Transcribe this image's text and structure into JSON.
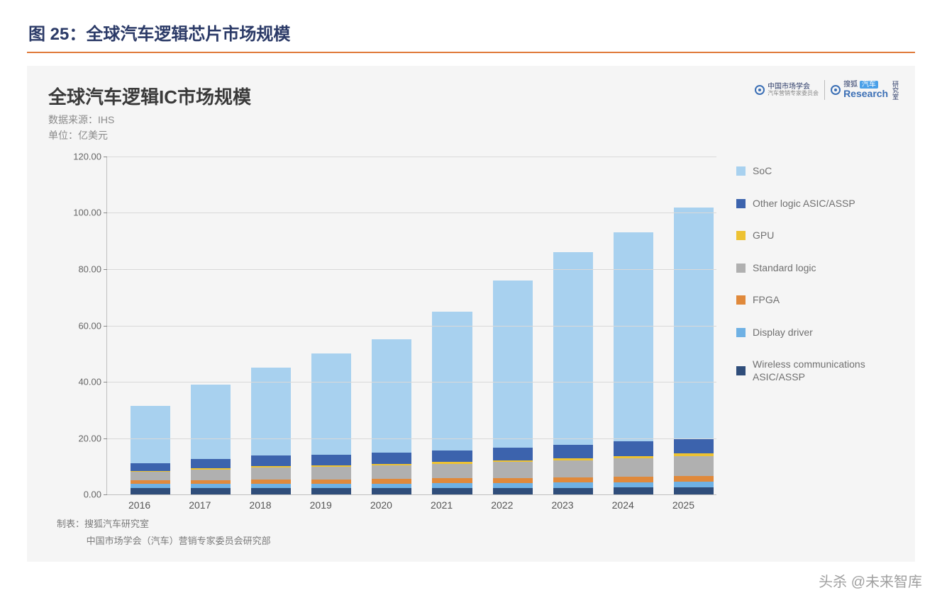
{
  "figure_caption": "图 25：全球汽车逻辑芯片市场规模",
  "hr_color": "#e07a3a",
  "panel": {
    "background": "#f5f5f5",
    "title": "全球汽车逻辑IC市场规模",
    "source_line": "数据来源：IHS",
    "unit_line": "单位：亿美元",
    "logo_left_cn_top": "中国市场学会",
    "logo_left_cn_bottom": "汽车营销专家委员会",
    "logo_right_prefix": "搜狐",
    "logo_right_pill": "汽车",
    "logo_right_brand": "Research",
    "logo_right_suffix": "研究室",
    "footer_line1": "制表：搜狐汽车研究室",
    "footer_line2": "中国市场学会（汽车）营销专家委员会研究部"
  },
  "watermark": "头杀 @未来智库",
  "chart": {
    "type": "stacked-bar",
    "ylim": [
      0,
      120
    ],
    "ytick_step": 20,
    "yticks": [
      "0.00",
      "20.00",
      "40.00",
      "60.00",
      "80.00",
      "100.00",
      "120.00"
    ],
    "grid_color": "#d9d9d9",
    "axis_color": "#bfbfbf",
    "label_color": "#666666",
    "category_fontsize": 14,
    "ylabel_fontsize": 13,
    "bar_width_ratio": 0.66,
    "categories": [
      "2016",
      "2017",
      "2018",
      "2019",
      "2020",
      "2021",
      "2022",
      "2023",
      "2024",
      "2025"
    ],
    "series_order_bottom_to_top": [
      "wireless",
      "display",
      "fpga",
      "standard",
      "gpu",
      "other",
      "soc"
    ],
    "series": {
      "soc": {
        "label": "SoC",
        "color": "#a8d1ef"
      },
      "other": {
        "label": "Other logic ASIC/ASSP",
        "color": "#3c63ad"
      },
      "gpu": {
        "label": "GPU",
        "color": "#edc233"
      },
      "standard": {
        "label": "Standard logic",
        "color": "#b0b0b0"
      },
      "fpga": {
        "label": "FPGA",
        "color": "#e0893b"
      },
      "display": {
        "label": "Display driver",
        "color": "#6fb1e4"
      },
      "wireless": {
        "label": "Wireless communications ASIC/ASSP",
        "color": "#2f4d7a"
      }
    },
    "legend_order": [
      "soc",
      "other",
      "gpu",
      "standard",
      "fpga",
      "display",
      "wireless"
    ],
    "values": {
      "wireless": [
        2.3,
        2.3,
        2.3,
        2.3,
        2.3,
        2.3,
        2.3,
        2.3,
        2.4,
        2.4
      ],
      "display": [
        1.4,
        1.4,
        1.5,
        1.5,
        1.6,
        1.7,
        1.8,
        1.9,
        2.0,
        2.1
      ],
      "fpga": [
        1.3,
        1.4,
        1.5,
        1.5,
        1.6,
        1.7,
        1.8,
        1.9,
        2.0,
        2.1
      ],
      "standard": [
        3.0,
        3.6,
        4.2,
        4.4,
        4.8,
        5.2,
        5.6,
        6.0,
        6.5,
        7.0
      ],
      "gpu": [
        0.4,
        0.5,
        0.5,
        0.5,
        0.6,
        0.6,
        0.7,
        0.7,
        0.8,
        0.9
      ],
      "other": [
        2.6,
        3.3,
        3.8,
        3.8,
        4.0,
        4.2,
        4.5,
        4.8,
        5.1,
        5.3
      ],
      "soc": [
        20.5,
        26.5,
        31.2,
        36.0,
        40.1,
        49.3,
        59.3,
        68.4,
        74.2,
        82.2
      ]
    }
  }
}
